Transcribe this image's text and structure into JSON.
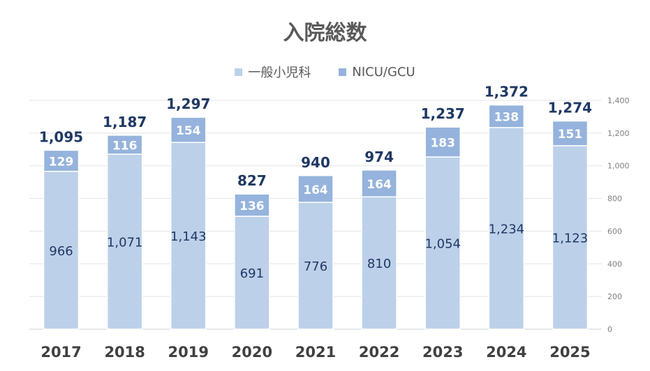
{
  "chart_data": {
    "type": "bar",
    "stacked": true,
    "title": "入院総数",
    "categories": [
      "2017",
      "2018",
      "2019",
      "2020",
      "2021",
      "2022",
      "2023",
      "2024",
      "2025"
    ],
    "series": [
      {
        "name": "一般小児科",
        "color": "#bdd0ea",
        "values": [
          966,
          1071,
          1143,
          691,
          776,
          810,
          1054,
          1234,
          1123
        ],
        "labels": [
          "966",
          "1,071",
          "1,143",
          "691",
          "776",
          "810",
          "1,054",
          "1,234",
          "1,123"
        ]
      },
      {
        "name": "NICU/GCU",
        "color": "#95b3dc",
        "values": [
          129,
          116,
          154,
          136,
          164,
          164,
          183,
          138,
          151
        ],
        "labels": [
          "129",
          "116",
          "154",
          "136",
          "164",
          "164",
          "183",
          "138",
          "151"
        ]
      }
    ],
    "totals": [
      1095,
      1187,
      1297,
      827,
      940,
      974,
      1237,
      1372,
      1274
    ],
    "total_labels": [
      "1,095",
      "1,187",
      "1,297",
      "827",
      "940",
      "974",
      "1,237",
      "1,372",
      "1,274"
    ],
    "ylim": [
      0,
      1400
    ],
    "yticks": [
      0,
      200,
      400,
      600,
      800,
      1000,
      1200,
      1400
    ],
    "ytick_labels": [
      "0",
      "200",
      "400",
      "600",
      "800",
      "1,000",
      "1,200",
      "1,400"
    ],
    "y_axis_side": "right",
    "grid": true,
    "legend": "top-center",
    "xlabel": "",
    "ylabel": ""
  }
}
